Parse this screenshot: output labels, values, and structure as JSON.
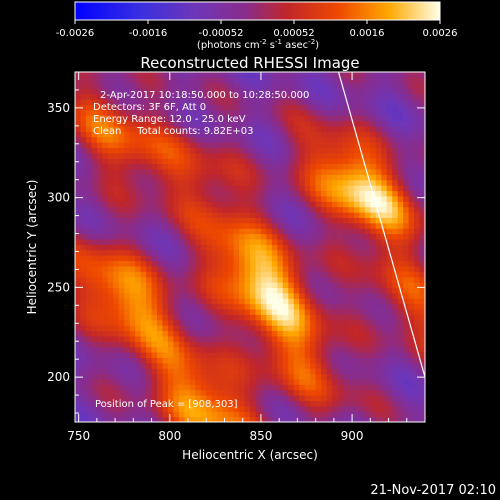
{
  "colorbar": {
    "ticks": [
      "-0.0026",
      "-0.0016",
      "-0.00052",
      "0.00052",
      "0.0016",
      "0.0026"
    ],
    "units_prefix": "(photons cm",
    "units_sup1": "-2",
    "units_mid": " s",
    "units_sup2": "-1",
    "units_mid2": " asec",
    "units_sup3": "-2",
    "units_suffix": ")",
    "range": [
      -0.0026,
      0.0026
    ]
  },
  "chart_data": {
    "type": "heatmap",
    "title": "Reconstructed RHESSI Image",
    "xlabel": "Heliocentric X (arcsec)",
    "ylabel": "Heliocentric Y (arcsec)",
    "xlim": [
      748,
      940
    ],
    "ylim": [
      175,
      370
    ],
    "x_ticks": [
      750,
      800,
      850,
      900
    ],
    "y_ticks": [
      200,
      250,
      300,
      350
    ],
    "annotations": [
      "2-Apr-2017 10:18:50.000 to 10:28:50.000",
      "Detectors: 3F 6F, Att 0",
      "Energy Range: 12.0 - 25.0 keV",
      "Clean     Total counts: 9.82E+03"
    ],
    "peak_label": "Position of Peak = [908,303]",
    "peak": [
      908,
      303
    ],
    "limb_line": [
      [
        892,
        372
      ],
      [
        940,
        200
      ]
    ],
    "sources": [
      {
        "x": 905,
        "y": 305,
        "strength": 1.0
      },
      {
        "x": 850,
        "y": 255,
        "strength": 0.95
      },
      {
        "x": 775,
        "y": 245,
        "strength": 0.82
      },
      {
        "x": 820,
        "y": 185,
        "strength": 0.8
      },
      {
        "x": 770,
        "y": 335,
        "strength": 0.55
      },
      {
        "x": 870,
        "y": 210,
        "strength": 0.5
      },
      {
        "x": 935,
        "y": 240,
        "strength": 0.45
      },
      {
        "x": 820,
        "y": 310,
        "strength": 0.35
      }
    ]
  },
  "timestamp": "21-Nov-2017 02:10"
}
